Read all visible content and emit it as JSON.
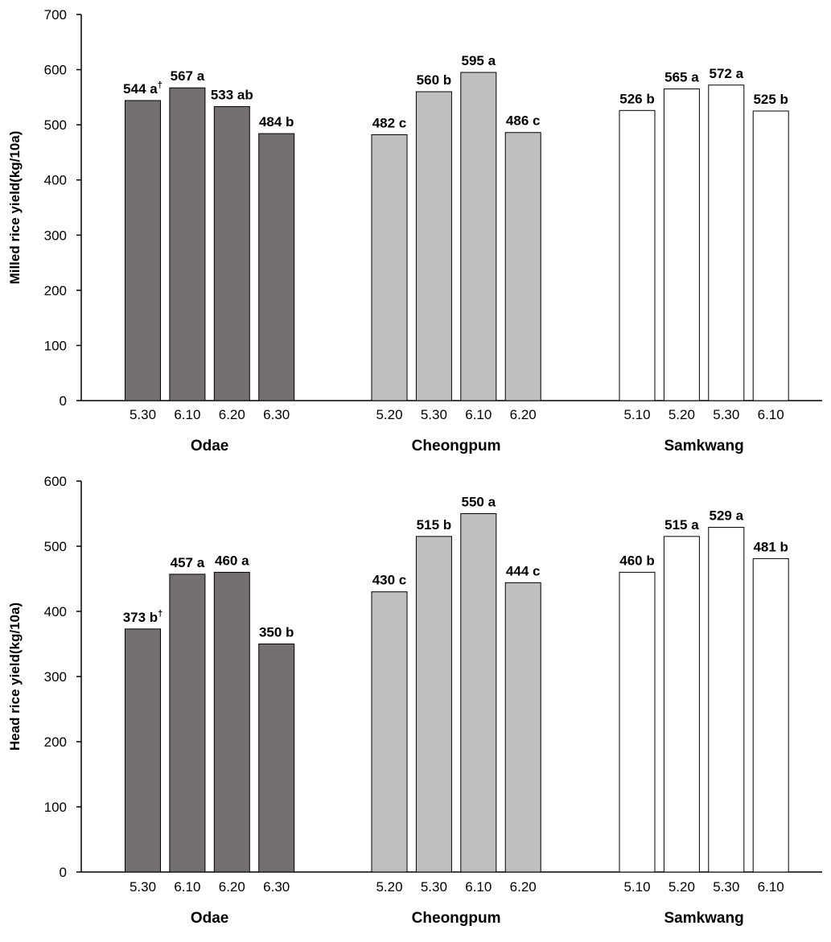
{
  "colors": {
    "Odae": "#757070",
    "Cheongpum": "#bfbfbf",
    "Samkwang": "#ffffff",
    "axis": "#000000"
  },
  "chart_data": [
    {
      "type": "bar",
      "ylabel": "Milled rice yield(kg/10a)",
      "ylim": [
        0,
        700
      ],
      "yticks": [
        0,
        100,
        200,
        300,
        400,
        500,
        600,
        700
      ],
      "groups": [
        {
          "name": "Odae",
          "dates": [
            "5.30",
            "6.10",
            "6.20",
            "6.30"
          ],
          "values": [
            544,
            567,
            533,
            484
          ],
          "labels": [
            "544 a",
            "567 a",
            "533 ab",
            "484 b"
          ],
          "marks": [
            "†",
            "",
            "",
            ""
          ]
        },
        {
          "name": "Cheongpum",
          "dates": [
            "5.20",
            "5.30",
            "6.10",
            "6.20"
          ],
          "values": [
            482,
            560,
            595,
            486
          ],
          "labels": [
            "482 c",
            "560 b",
            "595 a",
            "486 c"
          ],
          "marks": [
            "",
            "",
            "",
            ""
          ]
        },
        {
          "name": "Samkwang",
          "dates": [
            "5.10",
            "5.20",
            "5.30",
            "6.10"
          ],
          "values": [
            526,
            565,
            572,
            525
          ],
          "labels": [
            "526 b",
            "565 a",
            "572 a",
            "525 b"
          ],
          "marks": [
            "",
            "",
            "",
            ""
          ]
        }
      ]
    },
    {
      "type": "bar",
      "ylabel": "Head rice yield(kg/10a)",
      "ylim": [
        0,
        600
      ],
      "yticks": [
        0,
        100,
        200,
        300,
        400,
        500,
        600
      ],
      "groups": [
        {
          "name": "Odae",
          "dates": [
            "5.30",
            "6.10",
            "6.20",
            "6.30"
          ],
          "values": [
            373,
            457,
            460,
            350
          ],
          "labels": [
            "373 b",
            "457 a",
            "460 a",
            "350 b"
          ],
          "marks": [
            "†",
            "",
            "",
            ""
          ]
        },
        {
          "name": "Cheongpum",
          "dates": [
            "5.20",
            "5.30",
            "6.10",
            "6.20"
          ],
          "values": [
            430,
            515,
            550,
            444
          ],
          "labels": [
            "430 c",
            "515 b",
            "550 a",
            "444 c"
          ],
          "marks": [
            "",
            "",
            "",
            ""
          ]
        },
        {
          "name": "Samkwang",
          "dates": [
            "5.10",
            "5.20",
            "5.30",
            "6.10"
          ],
          "values": [
            460,
            515,
            529,
            481
          ],
          "labels": [
            "460 b",
            "515 a",
            "529 a",
            "481 b"
          ],
          "marks": [
            "",
            "",
            "",
            ""
          ]
        }
      ]
    }
  ]
}
